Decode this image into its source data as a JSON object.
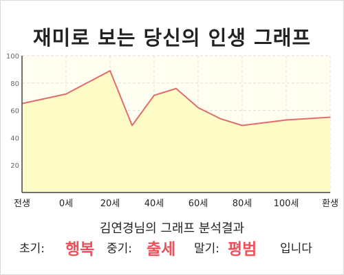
{
  "title": "재미로 보는 당신의 인생 그래프",
  "subtitle": "김연경님의 그래프 분석결과",
  "result": {
    "early_label": "초기:",
    "early_value": "행복",
    "mid_label": "중기:",
    "mid_value": "출세",
    "late_label": "말기:",
    "late_value": "평범",
    "ending": "입니다"
  },
  "colors": {
    "area_fill": "#fefcc6",
    "plot_bg": "#fffef0",
    "line": "#e06b6b",
    "grid": "#dddddd",
    "accent": "#f0505a"
  },
  "chart_data": {
    "type": "area",
    "x_tick_labels": [
      "전생",
      "0세",
      "20세",
      "40세",
      "60세",
      "80세",
      "100세",
      "환생"
    ],
    "y_tick_labels": [
      "20",
      "40",
      "60",
      "80",
      "100"
    ],
    "ylim": [
      0,
      100
    ],
    "grid": true,
    "series": [
      {
        "points": [
          {
            "x": "전생",
            "y": 65
          },
          {
            "x": "0세",
            "y": 72
          },
          {
            "x": "20세",
            "y": 89
          },
          {
            "x": "30세",
            "y": 49
          },
          {
            "x": "40세",
            "y": 71
          },
          {
            "x": "50세",
            "y": 76
          },
          {
            "x": "60세",
            "y": 62
          },
          {
            "x": "70세",
            "y": 54
          },
          {
            "x": "80세",
            "y": 49
          },
          {
            "x": "100세",
            "y": 53
          },
          {
            "x": "환생",
            "y": 55
          }
        ]
      }
    ]
  }
}
